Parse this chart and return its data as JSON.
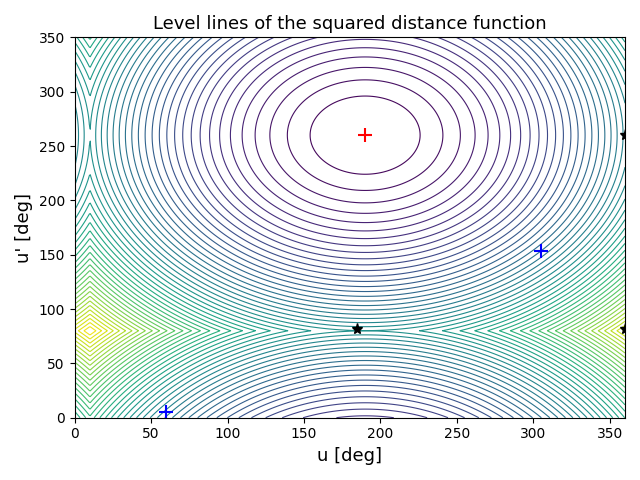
{
  "title": "Level lines of the squared distance function",
  "xlabel": "u [deg]",
  "ylabel": "u' [deg]",
  "xlim": [
    0,
    360
  ],
  "ylim": [
    0,
    350
  ],
  "xticks": [
    0,
    50,
    100,
    150,
    200,
    250,
    300,
    350
  ],
  "yticks": [
    0,
    50,
    100,
    150,
    200,
    250,
    300,
    350
  ],
  "minimum_point": [
    190,
    260
  ],
  "blue_plus_points": [
    [
      60,
      5
    ],
    [
      305,
      153
    ]
  ],
  "black_star_points": [
    [
      185,
      82
    ],
    [
      360,
      260
    ],
    [
      360,
      82
    ]
  ],
  "n_levels": 50,
  "colormap": "viridis"
}
